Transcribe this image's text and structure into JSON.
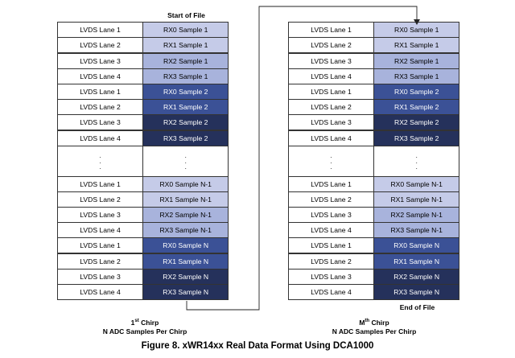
{
  "start_label": "Start of File",
  "end_label": "End of File",
  "left_caption": {
    "line1_main": "1",
    "line1_sup": "st",
    "line1_rest": " Chirp",
    "line2": "N ADC Samples Per Chirp"
  },
  "right_caption": {
    "line1_main": "M",
    "line1_sup": "th",
    "line1_rest": " Chirp",
    "line2": "N ADC Samples Per Chirp"
  },
  "figure_caption": "Figure 8. xWR14xx Real Data Format Using DCA1000",
  "colors": {
    "sample_1": "#c3c9e6",
    "sample_2": "#3a4f8f",
    "sample_n1": "#aab5dc",
    "sample_n": "#3a4f8f",
    "dark": "#28345f"
  },
  "rows_top": [
    {
      "lane": "LVDS Lane 1",
      "sample": "RX0 Sample 1",
      "tone": "light"
    },
    {
      "lane": "LVDS Lane 2",
      "sample": "RX1 Sample 1",
      "tone": "light"
    },
    {
      "lane": "LVDS Lane 3",
      "sample": "RX2 Sample 1",
      "tone": "light2"
    },
    {
      "lane": "LVDS Lane 4",
      "sample": "RX3 Sample 1",
      "tone": "light2"
    },
    {
      "lane": "LVDS Lane 1",
      "sample": "RX0 Sample 2",
      "tone": "mid"
    },
    {
      "lane": "LVDS Lane 2",
      "sample": "RX1 Sample 2",
      "tone": "mid"
    },
    {
      "lane": "LVDS Lane 3",
      "sample": "RX2 Sample 2",
      "tone": "dark"
    },
    {
      "lane": "LVDS Lane 4",
      "sample": "RX3 Sample 2",
      "tone": "dark"
    }
  ],
  "rows_bottom": [
    {
      "lane": "LVDS Lane 1",
      "sample": "RX0 Sample N-1",
      "tone": "light"
    },
    {
      "lane": "LVDS Lane 2",
      "sample": "RX1 Sample N-1",
      "tone": "light"
    },
    {
      "lane": "LVDS Lane 3",
      "sample": "RX2 Sample N-1",
      "tone": "light2"
    },
    {
      "lane": "LVDS Lane 4",
      "sample": "RX3 Sample N-1",
      "tone": "light2"
    },
    {
      "lane": "LVDS Lane 1",
      "sample": "RX0 Sample N",
      "tone": "mid"
    },
    {
      "lane": "LVDS Lane 2",
      "sample": "RX1 Sample N",
      "tone": "mid"
    },
    {
      "lane": "LVDS Lane 3",
      "sample": "RX2 Sample N",
      "tone": "dark"
    },
    {
      "lane": "LVDS Lane 4",
      "sample": "RX3 Sample N",
      "tone": "dark"
    }
  ],
  "ellipsis": ".",
  "tone_styles": {
    "light": {
      "bg": "#c5cbe8",
      "fg": "#000000"
    },
    "light2": {
      "bg": "#a8b3dc",
      "fg": "#000000"
    },
    "mid": {
      "bg": "#3b5196",
      "fg": "#ffffff"
    },
    "dark": {
      "bg": "#25315b",
      "fg": "#ffffff"
    }
  }
}
